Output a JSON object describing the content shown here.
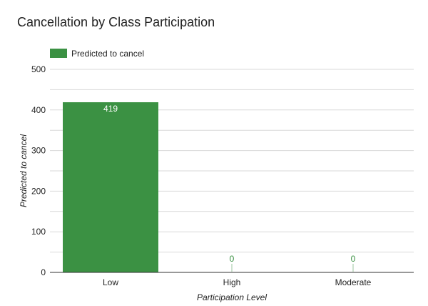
{
  "colors": {
    "bar": "#3b9143",
    "zero_label": "#3b9143"
  },
  "chart_data": {
    "type": "bar",
    "title": "Cancellation by Class Participation",
    "xlabel": "Participation Level",
    "ylabel": "Predicted to cancel",
    "categories": [
      "Low",
      "High",
      "Moderate"
    ],
    "series": [
      {
        "name": "Predicted to cancel",
        "values": [
          419,
          0,
          0
        ],
        "data_labels": [
          "419",
          "0",
          "0"
        ]
      }
    ],
    "ylim": [
      0,
      500
    ],
    "yticks": [
      0,
      100,
      200,
      300,
      400,
      500
    ],
    "ytick_labels": [
      "0",
      "100",
      "200",
      "300",
      "400",
      "500"
    ],
    "grid": true,
    "legend_position": "top-left"
  }
}
